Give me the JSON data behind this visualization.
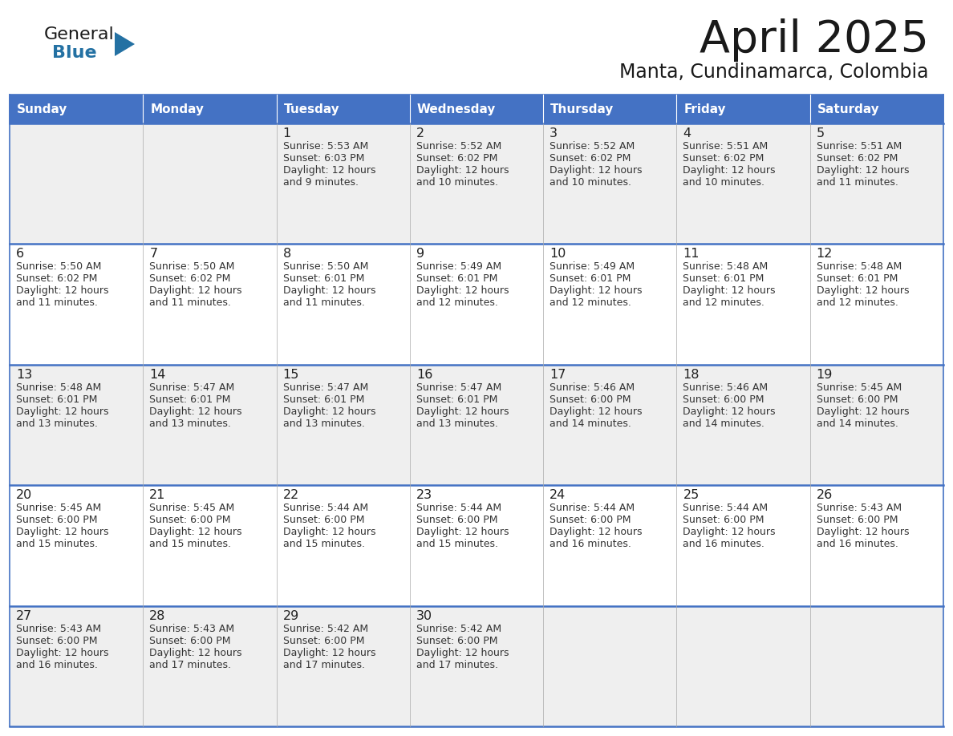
{
  "title": "April 2025",
  "subtitle": "Manta, Cundinamarca, Colombia",
  "header_bg": "#4472C4",
  "header_text": "#FFFFFF",
  "row_bg_odd": "#EFEFEF",
  "row_bg_even": "#FFFFFF",
  "border_color": "#4472C4",
  "text_color": "#333333",
  "day_num_color": "#222222",
  "days_of_week": [
    "Sunday",
    "Monday",
    "Tuesday",
    "Wednesday",
    "Thursday",
    "Friday",
    "Saturday"
  ],
  "logo_color1": "#1a1a1a",
  "logo_color2": "#2471A3",
  "logo_triangle_color": "#2471A3",
  "title_color": "#1a1a1a",
  "subtitle_color": "#1a1a1a",
  "calendar_data": [
    [
      {
        "day": "",
        "sunrise": "",
        "sunset": "",
        "daylight": ""
      },
      {
        "day": "",
        "sunrise": "",
        "sunset": "",
        "daylight": ""
      },
      {
        "day": "1",
        "sunrise": "5:53 AM",
        "sunset": "6:03 PM",
        "daylight": "12 hours\nand 9 minutes."
      },
      {
        "day": "2",
        "sunrise": "5:52 AM",
        "sunset": "6:02 PM",
        "daylight": "12 hours\nand 10 minutes."
      },
      {
        "day": "3",
        "sunrise": "5:52 AM",
        "sunset": "6:02 PM",
        "daylight": "12 hours\nand 10 minutes."
      },
      {
        "day": "4",
        "sunrise": "5:51 AM",
        "sunset": "6:02 PM",
        "daylight": "12 hours\nand 10 minutes."
      },
      {
        "day": "5",
        "sunrise": "5:51 AM",
        "sunset": "6:02 PM",
        "daylight": "12 hours\nand 11 minutes."
      }
    ],
    [
      {
        "day": "6",
        "sunrise": "5:50 AM",
        "sunset": "6:02 PM",
        "daylight": "12 hours\nand 11 minutes."
      },
      {
        "day": "7",
        "sunrise": "5:50 AM",
        "sunset": "6:02 PM",
        "daylight": "12 hours\nand 11 minutes."
      },
      {
        "day": "8",
        "sunrise": "5:50 AM",
        "sunset": "6:01 PM",
        "daylight": "12 hours\nand 11 minutes."
      },
      {
        "day": "9",
        "sunrise": "5:49 AM",
        "sunset": "6:01 PM",
        "daylight": "12 hours\nand 12 minutes."
      },
      {
        "day": "10",
        "sunrise": "5:49 AM",
        "sunset": "6:01 PM",
        "daylight": "12 hours\nand 12 minutes."
      },
      {
        "day": "11",
        "sunrise": "5:48 AM",
        "sunset": "6:01 PM",
        "daylight": "12 hours\nand 12 minutes."
      },
      {
        "day": "12",
        "sunrise": "5:48 AM",
        "sunset": "6:01 PM",
        "daylight": "12 hours\nand 12 minutes."
      }
    ],
    [
      {
        "day": "13",
        "sunrise": "5:48 AM",
        "sunset": "6:01 PM",
        "daylight": "12 hours\nand 13 minutes."
      },
      {
        "day": "14",
        "sunrise": "5:47 AM",
        "sunset": "6:01 PM",
        "daylight": "12 hours\nand 13 minutes."
      },
      {
        "day": "15",
        "sunrise": "5:47 AM",
        "sunset": "6:01 PM",
        "daylight": "12 hours\nand 13 minutes."
      },
      {
        "day": "16",
        "sunrise": "5:47 AM",
        "sunset": "6:01 PM",
        "daylight": "12 hours\nand 13 minutes."
      },
      {
        "day": "17",
        "sunrise": "5:46 AM",
        "sunset": "6:00 PM",
        "daylight": "12 hours\nand 14 minutes."
      },
      {
        "day": "18",
        "sunrise": "5:46 AM",
        "sunset": "6:00 PM",
        "daylight": "12 hours\nand 14 minutes."
      },
      {
        "day": "19",
        "sunrise": "5:45 AM",
        "sunset": "6:00 PM",
        "daylight": "12 hours\nand 14 minutes."
      }
    ],
    [
      {
        "day": "20",
        "sunrise": "5:45 AM",
        "sunset": "6:00 PM",
        "daylight": "12 hours\nand 15 minutes."
      },
      {
        "day": "21",
        "sunrise": "5:45 AM",
        "sunset": "6:00 PM",
        "daylight": "12 hours\nand 15 minutes."
      },
      {
        "day": "22",
        "sunrise": "5:44 AM",
        "sunset": "6:00 PM",
        "daylight": "12 hours\nand 15 minutes."
      },
      {
        "day": "23",
        "sunrise": "5:44 AM",
        "sunset": "6:00 PM",
        "daylight": "12 hours\nand 15 minutes."
      },
      {
        "day": "24",
        "sunrise": "5:44 AM",
        "sunset": "6:00 PM",
        "daylight": "12 hours\nand 16 minutes."
      },
      {
        "day": "25",
        "sunrise": "5:44 AM",
        "sunset": "6:00 PM",
        "daylight": "12 hours\nand 16 minutes."
      },
      {
        "day": "26",
        "sunrise": "5:43 AM",
        "sunset": "6:00 PM",
        "daylight": "12 hours\nand 16 minutes."
      }
    ],
    [
      {
        "day": "27",
        "sunrise": "5:43 AM",
        "sunset": "6:00 PM",
        "daylight": "12 hours\nand 16 minutes."
      },
      {
        "day": "28",
        "sunrise": "5:43 AM",
        "sunset": "6:00 PM",
        "daylight": "12 hours\nand 17 minutes."
      },
      {
        "day": "29",
        "sunrise": "5:42 AM",
        "sunset": "6:00 PM",
        "daylight": "12 hours\nand 17 minutes."
      },
      {
        "day": "30",
        "sunrise": "5:42 AM",
        "sunset": "6:00 PM",
        "daylight": "12 hours\nand 17 minutes."
      },
      {
        "day": "",
        "sunrise": "",
        "sunset": "",
        "daylight": ""
      },
      {
        "day": "",
        "sunrise": "",
        "sunset": "",
        "daylight": ""
      },
      {
        "day": "",
        "sunrise": "",
        "sunset": "",
        "daylight": ""
      }
    ]
  ]
}
